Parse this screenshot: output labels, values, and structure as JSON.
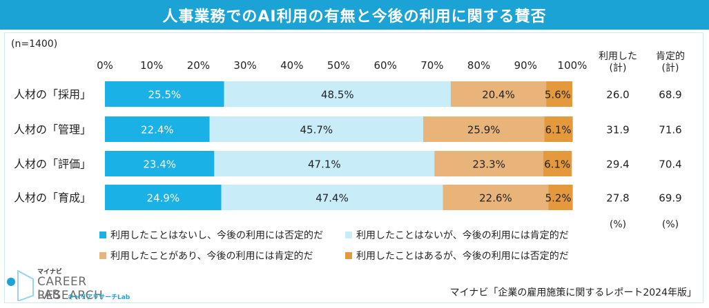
{
  "title": "人事業務でのAI利用の有無と今後の利用に関する賛否",
  "n_label": "(n=1400)",
  "col_headers": {
    "used_line1": "利用した",
    "used_line2": "(計)",
    "positive_line1": "肯定的",
    "positive_line2": "(計)",
    "unit1": "(%)",
    "unit2": "(%)"
  },
  "colors": {
    "s1": "#1ab1e6",
    "s2": "#c9ecf9",
    "s3": "#e9b47a",
    "s4": "#e49a3c",
    "title_bg": "#1ba3d6"
  },
  "chart_data": {
    "type": "bar",
    "orientation": "horizontal",
    "stacked": true,
    "title": "人事業務でのAI利用の有無と今後の利用に関する賛否",
    "xlim": [
      0,
      100
    ],
    "x_ticks": [
      "0%",
      "10%",
      "20%",
      "30%",
      "40%",
      "50%",
      "60%",
      "70%",
      "80%",
      "90%",
      "100%"
    ],
    "categories": [
      "人材の「採用」",
      "人材の「管理」",
      "人材の「評価」",
      "人材の「育成」"
    ],
    "series": [
      {
        "name": "利用したことはないし、今後の利用には否定的だ",
        "values": [
          25.5,
          22.4,
          23.4,
          24.9
        ]
      },
      {
        "name": "利用したことはないが、今後の利用には肯定的だ",
        "values": [
          48.5,
          45.7,
          47.1,
          47.4
        ]
      },
      {
        "name": "利用したことがあり、今後の利用には肯定的だ",
        "values": [
          20.4,
          25.9,
          23.3,
          22.6
        ]
      },
      {
        "name": "利用したことはあるが、今後の利用には否定的だ",
        "values": [
          5.6,
          6.1,
          6.1,
          5.2
        ]
      }
    ],
    "labels": [
      [
        "25.5%",
        "48.5%",
        "20.4%",
        "5.6%"
      ],
      [
        "22.4%",
        "45.7%",
        "25.9%",
        "6.1%"
      ],
      [
        "23.4%",
        "47.1%",
        "23.3%",
        "6.1%"
      ],
      [
        "24.9%",
        "47.4%",
        "22.6%",
        "5.2%"
      ]
    ],
    "used_total": [
      "26.0",
      "31.9",
      "29.4",
      "27.8"
    ],
    "positive_total": [
      "68.9",
      "71.6",
      "70.4",
      "69.9"
    ]
  },
  "source": "マイナビ「企業の雇用施策に関するレポート2024年版」",
  "logo": {
    "small": "マイナビ",
    "line1": "CAREER RESEARCH",
    "line2": "LAB",
    "kana": "キャリアリサーチLab"
  }
}
